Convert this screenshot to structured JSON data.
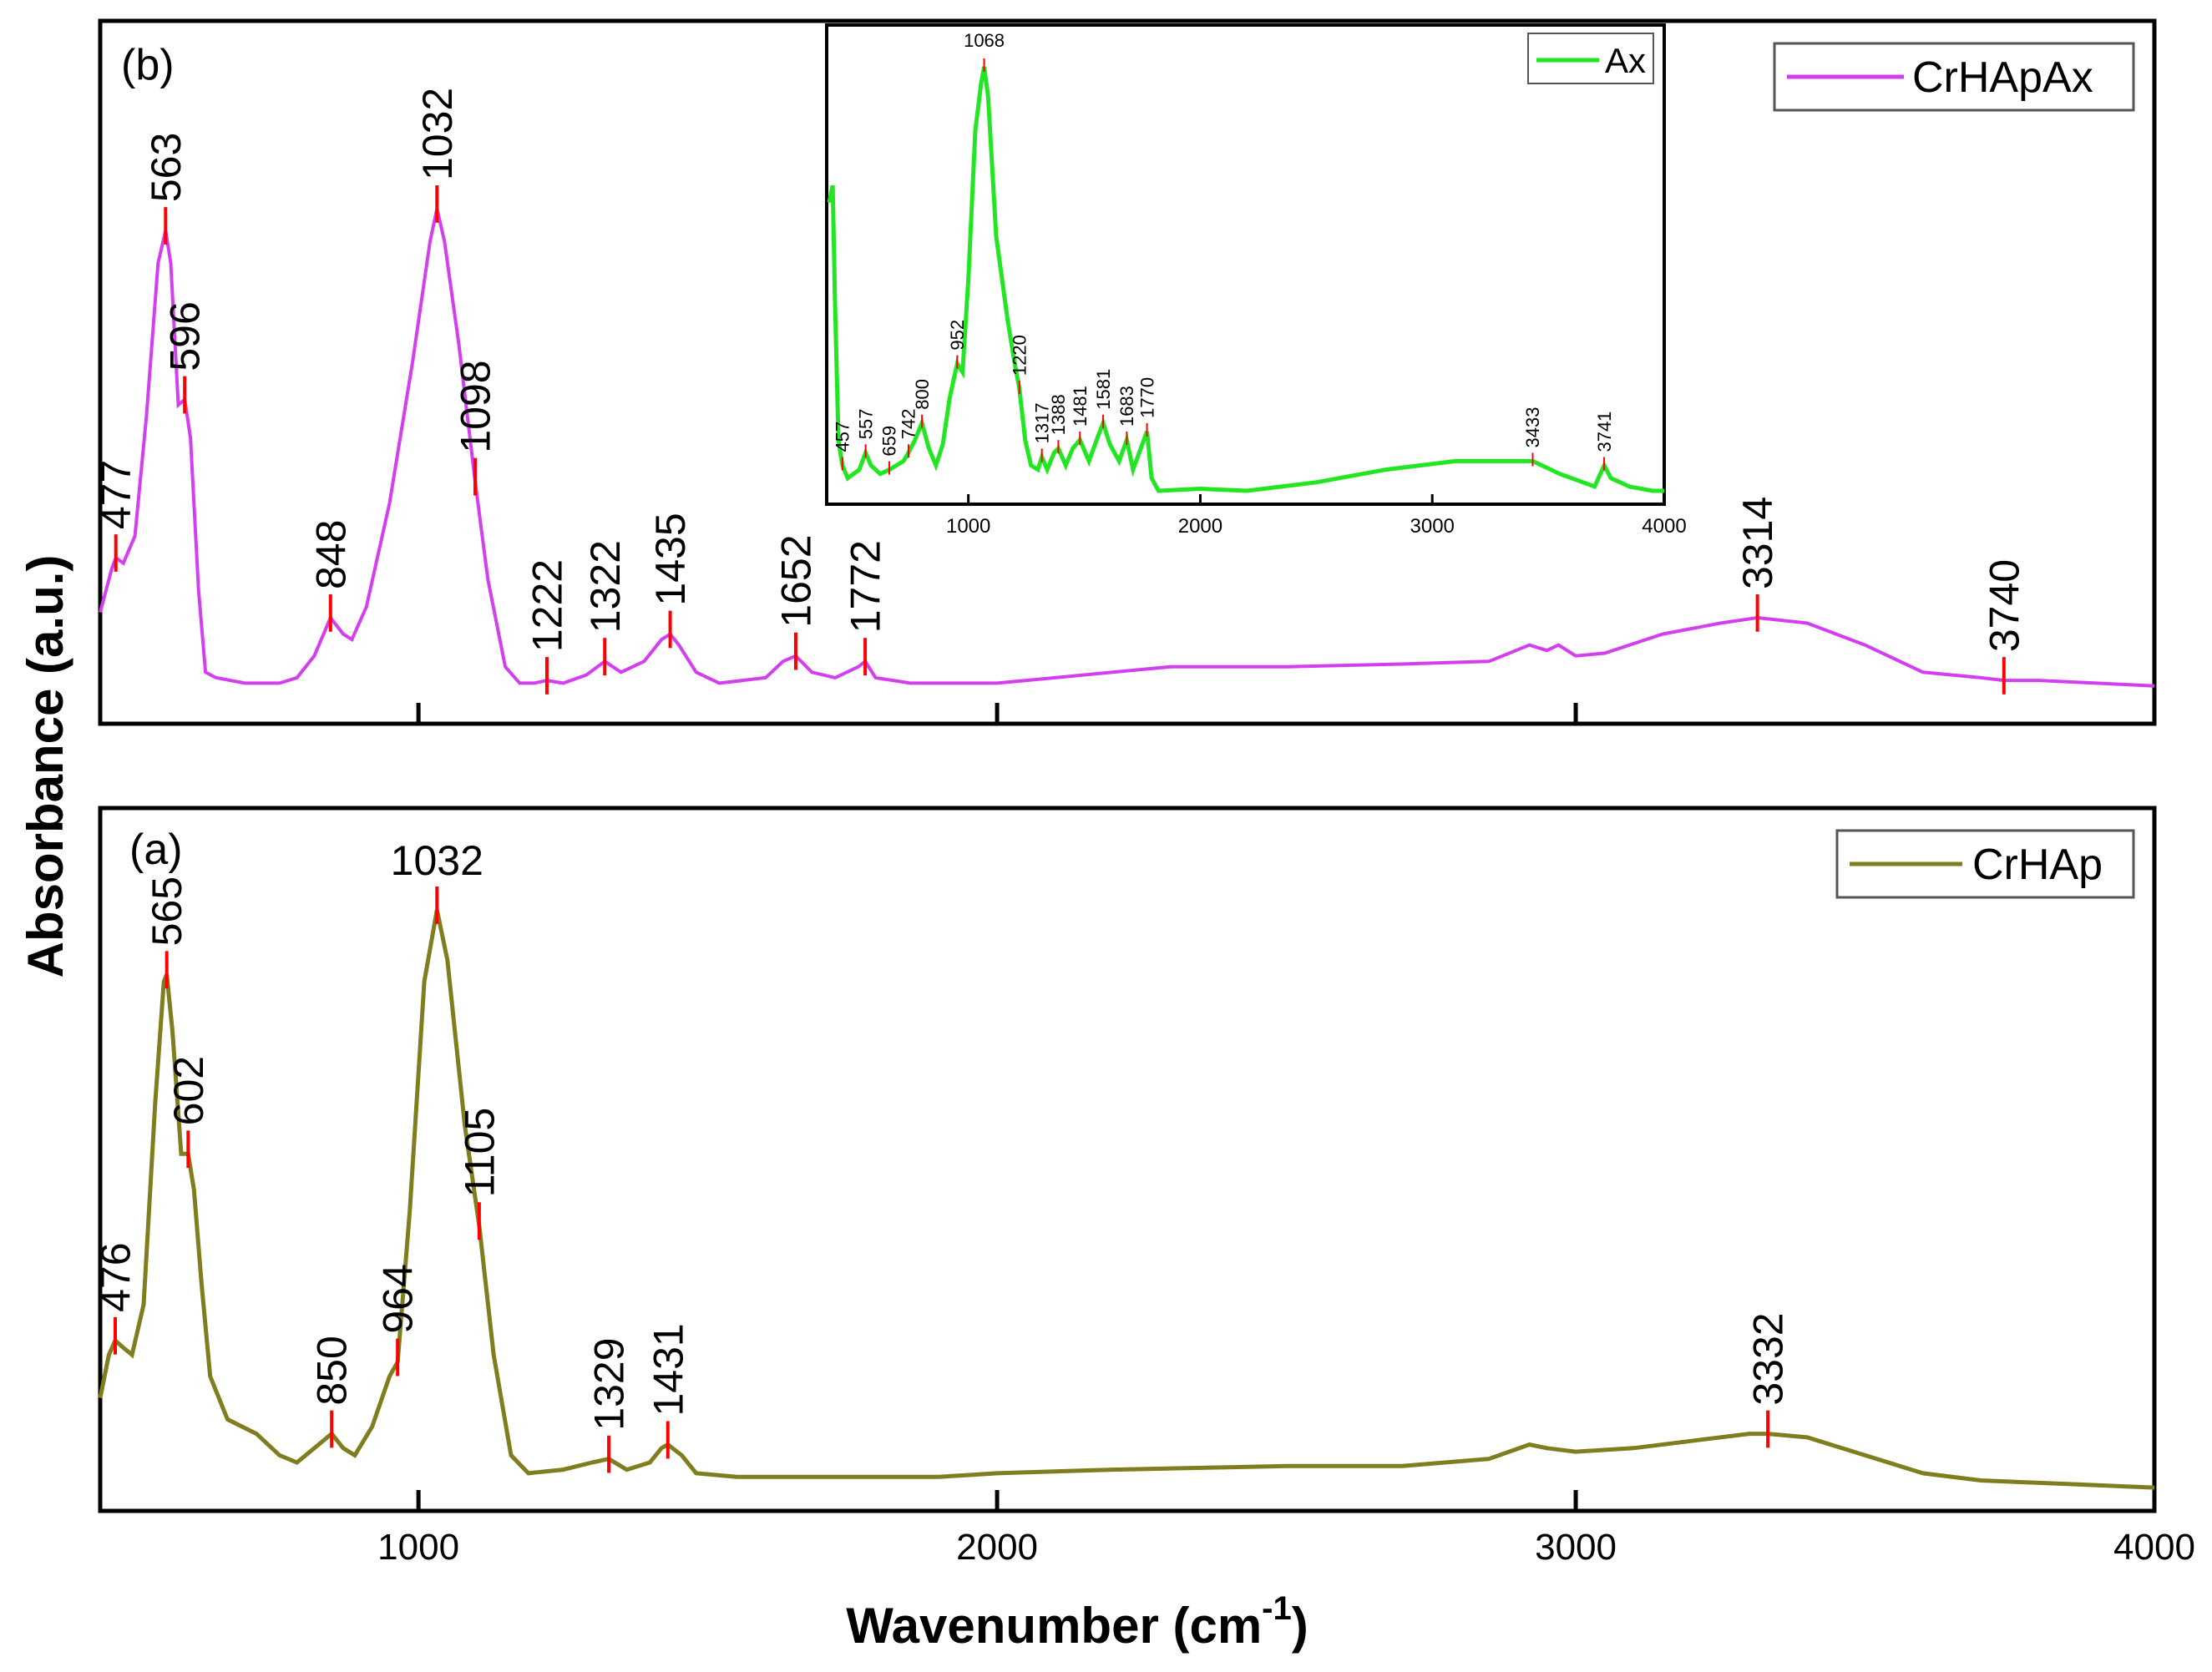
{
  "figure": {
    "ylabel": "Absorbance (a.u.)",
    "xlabel": "Wavenumber (cm",
    "xlabel_sup": "-1",
    "xlabel_close": ")"
  },
  "chart_data": [
    {
      "id": "b",
      "type": "line",
      "panel_label": "(b)",
      "legend": "CrHApAx",
      "color": "#d43ef0",
      "xlim": [
        450,
        4000
      ],
      "xticks": [
        1000,
        2000,
        3000,
        4000
      ],
      "tick_labels_shown": false,
      "points": [
        [
          450,
          0.16
        ],
        [
          470,
          0.24
        ],
        [
          477,
          0.26
        ],
        [
          490,
          0.25
        ],
        [
          510,
          0.3
        ],
        [
          530,
          0.52
        ],
        [
          550,
          0.8
        ],
        [
          563,
          0.86
        ],
        [
          572,
          0.8
        ],
        [
          585,
          0.54
        ],
        [
          596,
          0.55
        ],
        [
          606,
          0.48
        ],
        [
          620,
          0.2
        ],
        [
          632,
          0.05
        ],
        [
          650,
          0.04
        ],
        [
          700,
          0.03
        ],
        [
          760,
          0.03
        ],
        [
          790,
          0.04
        ],
        [
          820,
          0.08
        ],
        [
          848,
          0.15
        ],
        [
          870,
          0.12
        ],
        [
          885,
          0.11
        ],
        [
          910,
          0.17
        ],
        [
          950,
          0.36
        ],
        [
          990,
          0.62
        ],
        [
          1020,
          0.84
        ],
        [
          1032,
          0.9
        ],
        [
          1045,
          0.84
        ],
        [
          1070,
          0.65
        ],
        [
          1098,
          0.4
        ],
        [
          1120,
          0.22
        ],
        [
          1150,
          0.06
        ],
        [
          1175,
          0.03
        ],
        [
          1200,
          0.03
        ],
        [
          1222,
          0.035
        ],
        [
          1250,
          0.03
        ],
        [
          1290,
          0.045
        ],
        [
          1322,
          0.07
        ],
        [
          1350,
          0.05
        ],
        [
          1390,
          0.07
        ],
        [
          1420,
          0.11
        ],
        [
          1435,
          0.12
        ],
        [
          1450,
          0.1
        ],
        [
          1480,
          0.05
        ],
        [
          1520,
          0.03
        ],
        [
          1600,
          0.04
        ],
        [
          1630,
          0.07
        ],
        [
          1652,
          0.08
        ],
        [
          1680,
          0.05
        ],
        [
          1720,
          0.04
        ],
        [
          1760,
          0.06
        ],
        [
          1772,
          0.07
        ],
        [
          1790,
          0.04
        ],
        [
          1850,
          0.03
        ],
        [
          2000,
          0.03
        ],
        [
          2100,
          0.04
        ],
        [
          2200,
          0.05
        ],
        [
          2300,
          0.06
        ],
        [
          2500,
          0.06
        ],
        [
          2700,
          0.065
        ],
        [
          2850,
          0.07
        ],
        [
          2920,
          0.1
        ],
        [
          2950,
          0.09
        ],
        [
          2970,
          0.1
        ],
        [
          3000,
          0.08
        ],
        [
          3050,
          0.085
        ],
        [
          3150,
          0.12
        ],
        [
          3250,
          0.14
        ],
        [
          3314,
          0.15
        ],
        [
          3400,
          0.14
        ],
        [
          3500,
          0.1
        ],
        [
          3600,
          0.05
        ],
        [
          3700,
          0.04
        ],
        [
          3740,
          0.035
        ],
        [
          3800,
          0.035
        ],
        [
          3900,
          0.03
        ],
        [
          4000,
          0.025
        ]
      ],
      "peaks": [
        {
          "x": 477,
          "label": "477",
          "rot": true
        },
        {
          "x": 563,
          "label": "563",
          "rot": true
        },
        {
          "x": 596,
          "label": "596",
          "rot": true
        },
        {
          "x": 848,
          "label": "848",
          "rot": true
        },
        {
          "x": 1032,
          "label": "1032",
          "rot": true
        },
        {
          "x": 1098,
          "label": "1098",
          "rot": true
        },
        {
          "x": 1222,
          "label": "1222",
          "rot": true
        },
        {
          "x": 1322,
          "label": "1322",
          "rot": true
        },
        {
          "x": 1435,
          "label": "1435",
          "rot": true
        },
        {
          "x": 1652,
          "label": "1652",
          "rot": true
        },
        {
          "x": 1772,
          "label": "1772",
          "rot": true
        },
        {
          "x": 3314,
          "label": "3314",
          "rot": true
        },
        {
          "x": 3740,
          "label": "3740",
          "rot": true
        }
      ]
    },
    {
      "id": "inset",
      "type": "line",
      "legend": "Ax",
      "color": "#22e622",
      "xlim": [
        400,
        4000
      ],
      "xticks": [
        1000,
        2000,
        3000,
        4000
      ],
      "xtick_labels": [
        "1000",
        "2000",
        "3000",
        "4000"
      ],
      "points": [
        [
          400,
          0.68
        ],
        [
          415,
          0.72
        ],
        [
          425,
          0.45
        ],
        [
          440,
          0.12
        ],
        [
          457,
          0.06
        ],
        [
          480,
          0.03
        ],
        [
          530,
          0.05
        ],
        [
          557,
          0.09
        ],
        [
          580,
          0.06
        ],
        [
          620,
          0.04
        ],
        [
          659,
          0.05
        ],
        [
          690,
          0.06
        ],
        [
          720,
          0.07
        ],
        [
          742,
          0.09
        ],
        [
          770,
          0.12
        ],
        [
          800,
          0.16
        ],
        [
          830,
          0.1
        ],
        [
          860,
          0.06
        ],
        [
          890,
          0.11
        ],
        [
          920,
          0.22
        ],
        [
          952,
          0.3
        ],
        [
          975,
          0.28
        ],
        [
          1000,
          0.5
        ],
        [
          1030,
          0.85
        ],
        [
          1055,
          0.96
        ],
        [
          1068,
          1.0
        ],
        [
          1085,
          0.93
        ],
        [
          1120,
          0.6
        ],
        [
          1170,
          0.4
        ],
        [
          1200,
          0.3
        ],
        [
          1220,
          0.24
        ],
        [
          1245,
          0.12
        ],
        [
          1270,
          0.06
        ],
        [
          1300,
          0.05
        ],
        [
          1317,
          0.08
        ],
        [
          1340,
          0.05
        ],
        [
          1370,
          0.09
        ],
        [
          1388,
          0.1
        ],
        [
          1420,
          0.06
        ],
        [
          1450,
          0.1
        ],
        [
          1481,
          0.12
        ],
        [
          1520,
          0.07
        ],
        [
          1560,
          0.13
        ],
        [
          1581,
          0.16
        ],
        [
          1610,
          0.11
        ],
        [
          1650,
          0.07
        ],
        [
          1683,
          0.12
        ],
        [
          1710,
          0.05
        ],
        [
          1750,
          0.11
        ],
        [
          1770,
          0.14
        ],
        [
          1790,
          0.03
        ],
        [
          1820,
          0.0
        ],
        [
          2000,
          0.005
        ],
        [
          2200,
          0.0
        ],
        [
          2500,
          0.02
        ],
        [
          2800,
          0.05
        ],
        [
          3100,
          0.07
        ],
        [
          3300,
          0.07
        ],
        [
          3433,
          0.07
        ],
        [
          3550,
          0.04
        ],
        [
          3650,
          0.02
        ],
        [
          3700,
          0.01
        ],
        [
          3741,
          0.06
        ],
        [
          3770,
          0.03
        ],
        [
          3850,
          0.01
        ],
        [
          3950,
          0.0
        ],
        [
          4000,
          0.0
        ]
      ],
      "peaks": [
        {
          "x": 457,
          "label": "457"
        },
        {
          "x": 557,
          "label": "557"
        },
        {
          "x": 659,
          "label": "659"
        },
        {
          "x": 742,
          "label": "742"
        },
        {
          "x": 800,
          "label": "800"
        },
        {
          "x": 952,
          "label": "952"
        },
        {
          "x": 1068,
          "label": "1068"
        },
        {
          "x": 1220,
          "label": "1220"
        },
        {
          "x": 1317,
          "label": "1317"
        },
        {
          "x": 1388,
          "label": "1388"
        },
        {
          "x": 1481,
          "label": "1481"
        },
        {
          "x": 1581,
          "label": "1581"
        },
        {
          "x": 1683,
          "label": "1683"
        },
        {
          "x": 1770,
          "label": "1770"
        },
        {
          "x": 3433,
          "label": "3433"
        },
        {
          "x": 3741,
          "label": "3741"
        }
      ]
    },
    {
      "id": "a",
      "type": "line",
      "panel_label": "(a)",
      "legend": "CrHAp",
      "color": "#7f7d1e",
      "xlim": [
        450,
        4000
      ],
      "xticks": [
        1000,
        2000,
        3000,
        4000
      ],
      "xtick_labels": [
        "1000",
        "2000",
        "3000",
        "4000"
      ],
      "points": [
        [
          450,
          0.14
        ],
        [
          465,
          0.2
        ],
        [
          476,
          0.22
        ],
        [
          490,
          0.21
        ],
        [
          505,
          0.2
        ],
        [
          525,
          0.27
        ],
        [
          545,
          0.55
        ],
        [
          560,
          0.72
        ],
        [
          565,
          0.73
        ],
        [
          575,
          0.65
        ],
        [
          590,
          0.48
        ],
        [
          602,
          0.48
        ],
        [
          612,
          0.43
        ],
        [
          625,
          0.3
        ],
        [
          640,
          0.17
        ],
        [
          670,
          0.11
        ],
        [
          720,
          0.09
        ],
        [
          760,
          0.06
        ],
        [
          790,
          0.05
        ],
        [
          820,
          0.07
        ],
        [
          850,
          0.09
        ],
        [
          870,
          0.07
        ],
        [
          890,
          0.06
        ],
        [
          920,
          0.1
        ],
        [
          950,
          0.17
        ],
        [
          964,
          0.19
        ],
        [
          985,
          0.4
        ],
        [
          1010,
          0.72
        ],
        [
          1032,
          0.82
        ],
        [
          1050,
          0.75
        ],
        [
          1080,
          0.52
        ],
        [
          1105,
          0.38
        ],
        [
          1130,
          0.2
        ],
        [
          1160,
          0.06
        ],
        [
          1190,
          0.035
        ],
        [
          1250,
          0.04
        ],
        [
          1300,
          0.05
        ],
        [
          1329,
          0.055
        ],
        [
          1360,
          0.04
        ],
        [
          1400,
          0.05
        ],
        [
          1420,
          0.07
        ],
        [
          1431,
          0.075
        ],
        [
          1455,
          0.06
        ],
        [
          1480,
          0.035
        ],
        [
          1550,
          0.03
        ],
        [
          1700,
          0.03
        ],
        [
          1900,
          0.03
        ],
        [
          2000,
          0.035
        ],
        [
          2200,
          0.04
        ],
        [
          2500,
          0.045
        ],
        [
          2700,
          0.045
        ],
        [
          2850,
          0.055
        ],
        [
          2920,
          0.075
        ],
        [
          2950,
          0.07
        ],
        [
          3000,
          0.065
        ],
        [
          3100,
          0.07
        ],
        [
          3200,
          0.08
        ],
        [
          3300,
          0.09
        ],
        [
          3332,
          0.09
        ],
        [
          3400,
          0.085
        ],
        [
          3500,
          0.06
        ],
        [
          3600,
          0.035
        ],
        [
          3700,
          0.025
        ],
        [
          3850,
          0.02
        ],
        [
          4000,
          0.015
        ]
      ],
      "peaks": [
        {
          "x": 476,
          "label": "476",
          "rot": true
        },
        {
          "x": 565,
          "label": "565",
          "rot": true
        },
        {
          "x": 602,
          "label": "602",
          "rot": true
        },
        {
          "x": 850,
          "label": "850",
          "rot": true
        },
        {
          "x": 964,
          "label": "964",
          "rot": true
        },
        {
          "x": 1032,
          "label": "1032",
          "rot": false
        },
        {
          "x": 1105,
          "label": "1105",
          "rot": true
        },
        {
          "x": 1329,
          "label": "1329",
          "rot": true
        },
        {
          "x": 1431,
          "label": "1431",
          "rot": true
        },
        {
          "x": 3332,
          "label": "3332",
          "rot": true
        }
      ]
    }
  ]
}
